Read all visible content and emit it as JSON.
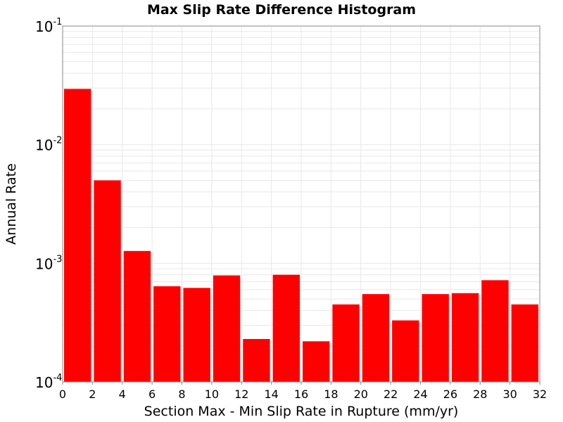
{
  "chart_data": {
    "type": "bar",
    "title": "Max Slip Rate Difference Histogram",
    "xlabel": "Section Max - Min Slip Rate in Rupture (mm/yr)",
    "ylabel": "Annual Rate",
    "y_scale": "log",
    "ylim": [
      0.0001,
      0.1
    ],
    "xlim": [
      0,
      32
    ],
    "bin_width": 2,
    "x_ticks": [
      "0",
      "2",
      "4",
      "6",
      "8",
      "10",
      "12",
      "14",
      "16",
      "18",
      "20",
      "22",
      "24",
      "26",
      "28",
      "30",
      "32"
    ],
    "y_ticks": [
      {
        "base": "10",
        "exp": "-4",
        "value": 0.0001
      },
      {
        "base": "10",
        "exp": "-3",
        "value": 0.001
      },
      {
        "base": "10",
        "exp": "-2",
        "value": 0.01
      },
      {
        "base": "10",
        "exp": "-1",
        "value": 0.1
      }
    ],
    "bins": [
      {
        "x": 1,
        "value": 0.0295
      },
      {
        "x": 3,
        "value": 0.005
      },
      {
        "x": 5,
        "value": 0.00127
      },
      {
        "x": 7,
        "value": 0.00064
      },
      {
        "x": 9,
        "value": 0.00062
      },
      {
        "x": 11,
        "value": 0.00079
      },
      {
        "x": 13,
        "value": 0.00023
      },
      {
        "x": 15,
        "value": 0.0008
      },
      {
        "x": 17,
        "value": 0.00022
      },
      {
        "x": 19,
        "value": 0.00045
      },
      {
        "x": 21,
        "value": 0.00055
      },
      {
        "x": 23,
        "value": 0.00033
      },
      {
        "x": 25,
        "value": 0.00055
      },
      {
        "x": 27,
        "value": 0.00056
      },
      {
        "x": 29,
        "value": 0.00072
      },
      {
        "x": 31,
        "value": 0.00045
      }
    ],
    "bar_color": "#ff0000",
    "grid": true,
    "grid_color": "#e8e8e8",
    "legend": "none"
  }
}
